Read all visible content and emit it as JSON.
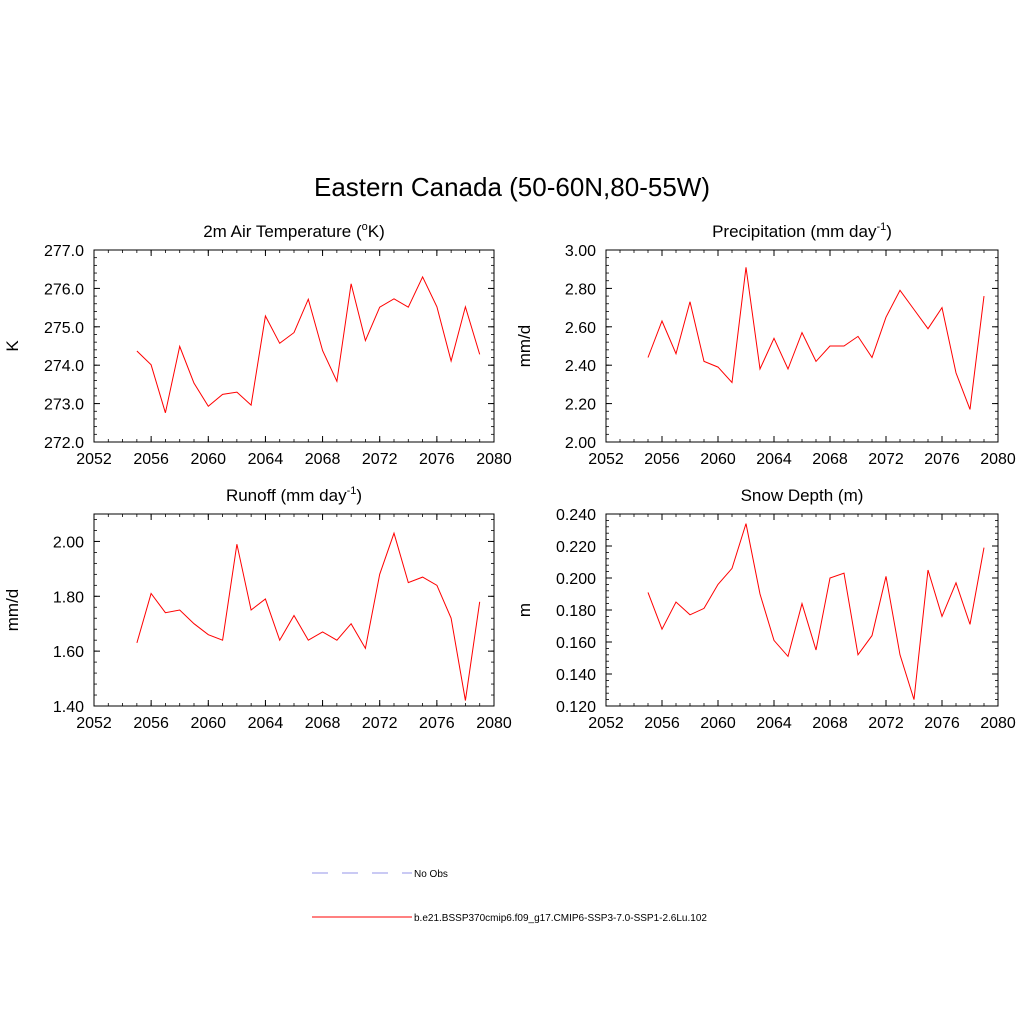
{
  "title": "Eastern Canada (50-60N,80-55W)",
  "legend": {
    "entries": [
      {
        "label": "No Obs",
        "style": "dashed",
        "color": "#aaaaee"
      },
      {
        "label": "b.e21.BSSP370cmip6.f09_g17.CMIP6-SSP3-7.0-SSP1-2.6Lu.102",
        "style": "solid",
        "color": "#ff0000"
      }
    ]
  },
  "chart_data": [
    {
      "type": "line",
      "title": "2m Air Temperature (oK)",
      "title_parts": {
        "pre": "2m Air Temperature (",
        "sup": "o",
        "post": "K)"
      },
      "ylabel": "K",
      "xlim": [
        2052,
        2080
      ],
      "ylim": [
        272.0,
        277.0
      ],
      "xticks": [
        "2052",
        "2056",
        "2060",
        "2064",
        "2068",
        "2072",
        "2076",
        "2080"
      ],
      "yticks": [
        "272.0",
        "273.0",
        "274.0",
        "275.0",
        "276.0",
        "277.0"
      ],
      "grid": false,
      "series": [
        {
          "color": "#ff0000",
          "x": [
            2055,
            2056,
            2057,
            2058,
            2059,
            2060,
            2061,
            2062,
            2063,
            2064,
            2065,
            2066,
            2067,
            2068,
            2069,
            2070,
            2071,
            2072,
            2073,
            2074,
            2075,
            2076,
            2077,
            2078,
            2079
          ],
          "y": [
            274.37,
            274.01,
            272.76,
            274.49,
            273.53,
            272.93,
            273.24,
            273.3,
            272.96,
            275.28,
            274.57,
            274.85,
            275.72,
            274.38,
            273.58,
            276.12,
            274.64,
            275.51,
            275.73,
            275.51,
            276.3,
            275.52,
            274.11,
            275.52,
            274.28
          ]
        }
      ]
    },
    {
      "type": "line",
      "title": "Precipitation (mm day-1)",
      "title_parts": {
        "pre": "Precipitation (mm day",
        "sup": "-1",
        "post": ")"
      },
      "ylabel": "mm/d",
      "xlim": [
        2052,
        2080
      ],
      "ylim": [
        2.0,
        3.0
      ],
      "xticks": [
        "2052",
        "2056",
        "2060",
        "2064",
        "2068",
        "2072",
        "2076",
        "2080"
      ],
      "yticks": [
        "2.00",
        "2.20",
        "2.40",
        "2.60",
        "2.80",
        "3.00"
      ],
      "grid": false,
      "series": [
        {
          "color": "#ff0000",
          "x": [
            2055,
            2056,
            2057,
            2058,
            2059,
            2060,
            2061,
            2062,
            2063,
            2064,
            2065,
            2066,
            2067,
            2068,
            2069,
            2070,
            2071,
            2072,
            2073,
            2074,
            2075,
            2076,
            2077,
            2078,
            2079
          ],
          "y": [
            2.44,
            2.63,
            2.46,
            2.73,
            2.42,
            2.39,
            2.31,
            2.91,
            2.38,
            2.54,
            2.38,
            2.57,
            2.42,
            2.5,
            2.5,
            2.55,
            2.44,
            2.65,
            2.79,
            2.69,
            2.59,
            2.7,
            2.36,
            2.17,
            2.76
          ]
        }
      ]
    },
    {
      "type": "line",
      "title": "Runoff (mm day-1)",
      "title_parts": {
        "pre": "Runoff (mm day",
        "sup": "-1",
        "post": ")"
      },
      "ylabel": "mm/d",
      "xlim": [
        2052,
        2080
      ],
      "ylim": [
        1.4,
        2.1
      ],
      "xticks": [
        "2052",
        "2056",
        "2060",
        "2064",
        "2068",
        "2072",
        "2076",
        "2080"
      ],
      "yticks": [
        "1.40",
        "1.60",
        "1.80",
        "2.00"
      ],
      "grid": false,
      "series": [
        {
          "color": "#ff0000",
          "x": [
            2055,
            2056,
            2057,
            2058,
            2059,
            2060,
            2061,
            2062,
            2063,
            2064,
            2065,
            2066,
            2067,
            2068,
            2069,
            2070,
            2071,
            2072,
            2073,
            2074,
            2075,
            2076,
            2077,
            2078,
            2079
          ],
          "y": [
            1.63,
            1.81,
            1.74,
            1.75,
            1.7,
            1.66,
            1.64,
            1.99,
            1.75,
            1.79,
            1.64,
            1.73,
            1.64,
            1.67,
            1.64,
            1.7,
            1.61,
            1.88,
            2.03,
            1.85,
            1.87,
            1.84,
            1.72,
            1.42,
            1.78
          ]
        }
      ]
    },
    {
      "type": "line",
      "title": "Snow Depth (m)",
      "title_parts": {
        "pre": "Snow Depth (m)",
        "sup": "",
        "post": ""
      },
      "ylabel": "m",
      "xlim": [
        2052,
        2080
      ],
      "ylim": [
        0.12,
        0.24
      ],
      "xticks": [
        "2052",
        "2056",
        "2060",
        "2064",
        "2068",
        "2072",
        "2076",
        "2080"
      ],
      "yticks": [
        "0.120",
        "0.140",
        "0.160",
        "0.180",
        "0.200",
        "0.220",
        "0.240"
      ],
      "grid": false,
      "series": [
        {
          "color": "#ff0000",
          "x": [
            2055,
            2056,
            2057,
            2058,
            2059,
            2060,
            2061,
            2062,
            2063,
            2064,
            2065,
            2066,
            2067,
            2068,
            2069,
            2070,
            2071,
            2072,
            2073,
            2074,
            2075,
            2076,
            2077,
            2078,
            2079
          ],
          "y": [
            0.191,
            0.168,
            0.185,
            0.177,
            0.181,
            0.196,
            0.206,
            0.234,
            0.19,
            0.161,
            0.151,
            0.184,
            0.155,
            0.2,
            0.203,
            0.152,
            0.164,
            0.201,
            0.152,
            0.124,
            0.205,
            0.176,
            0.197,
            0.171,
            0.219
          ]
        }
      ]
    }
  ]
}
